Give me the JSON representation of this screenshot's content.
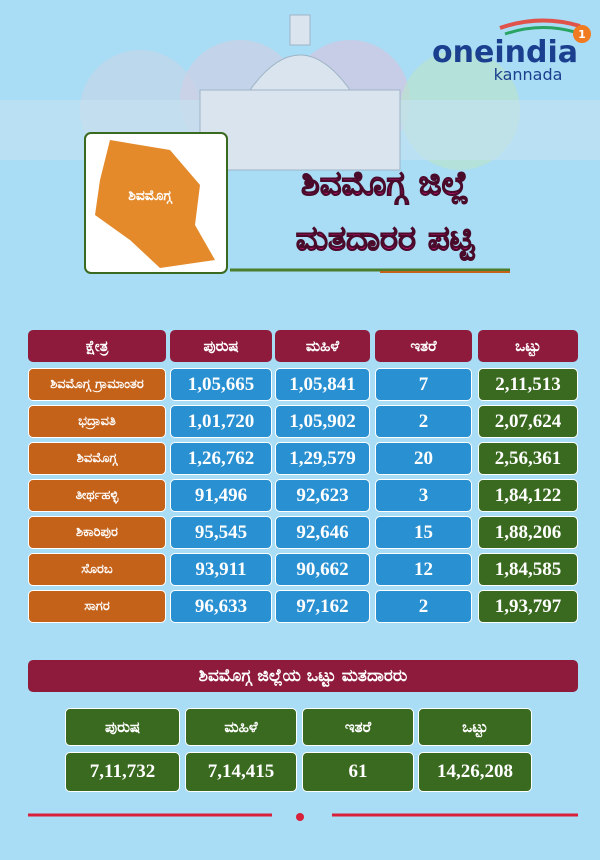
{
  "header": {
    "logo": {
      "brand": "oneindia",
      "sub": "kannada",
      "badge": "1"
    },
    "map_label": "ಶಿವಮೊಗ್ಗ",
    "title_lines": [
      "ಶಿವಮೊಗ್ಗ ಜಿಲ್ಲೆ",
      "ಮತದಾರರ ಪಟ್ಟಿ"
    ]
  },
  "table": {
    "columns": [
      "ಕ್ಷೇತ್ರ",
      "ಪುರುಷ",
      "ಮಹಿಳೆ",
      "ಇತರೆ",
      "ಒಟ್ಟು"
    ],
    "rows": [
      [
        "ಶಿವಮೊಗ್ಗ ಗ್ರಾಮಾಂತರ",
        "1,05,665",
        "1,05,841",
        "7",
        "2,11,513"
      ],
      [
        "ಭದ್ರಾವತಿ",
        "1,01,720",
        "1,05,902",
        "2",
        "2,07,624"
      ],
      [
        "ಶಿವಮೊಗ್ಗ",
        "1,26,762",
        "1,29,579",
        "20",
        "2,56,361"
      ],
      [
        "ತೀರ್ಥಹಳ್ಳಿ",
        "91,496",
        "92,623",
        "3",
        "1,84,122"
      ],
      [
        "ಶಿಕಾರಿಪುರ",
        "95,545",
        "92,646",
        "15",
        "1,88,206"
      ],
      [
        "ಸೊರಬ",
        "93,911",
        "90,662",
        "12",
        "1,84,585"
      ],
      [
        "ಸಾಗರ",
        "96,633",
        "97,162",
        "2",
        "1,93,797"
      ]
    ]
  },
  "summary": {
    "title": "ಶಿವಮೊಗ್ಗ ಜಿಲ್ಲೆಯ ಒಟ್ಟು ಮತದಾರರು",
    "columns": [
      "ಪುರುಷ",
      "ಮಹಿಳೆ",
      "ಇತರೆ",
      "ಒಟ್ಟು"
    ],
    "values": [
      "7,11,732",
      "7,14,415",
      "61",
      "14,26,208"
    ]
  }
}
